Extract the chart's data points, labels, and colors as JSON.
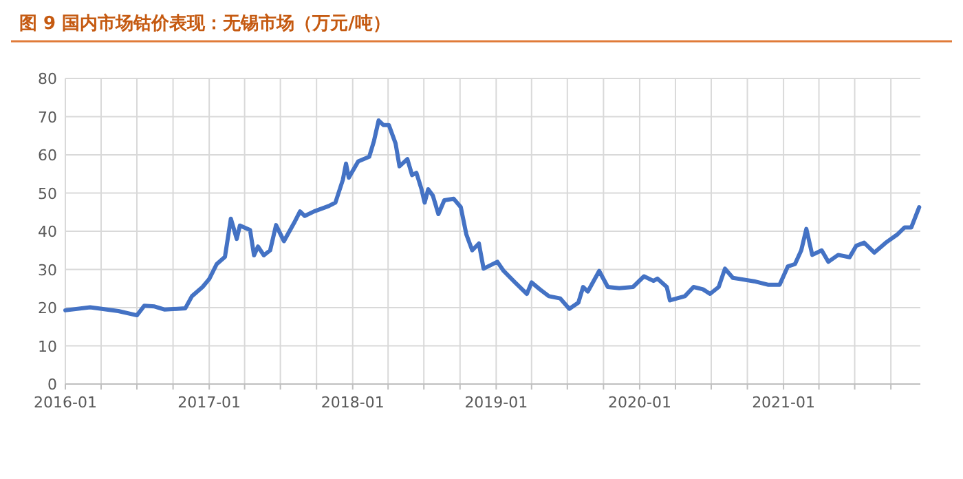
{
  "chart_data": {
    "type": "line",
    "title": "图 9  国内市场钴价表现：无锡市场（万元/吨）",
    "x": [
      "2016-01-01",
      "2016-03-04",
      "2016-05-15",
      "2016-07-01",
      "2016-07-20",
      "2016-08-15",
      "2016-09-10",
      "2016-11-01",
      "2016-11-18",
      "2016-12-15",
      "2017-01-01",
      "2017-01-20",
      "2017-02-10",
      "2017-02-25",
      "2017-03-12",
      "2017-03-20",
      "2017-04-15",
      "2017-04-25",
      "2017-05-05",
      "2017-05-20",
      "2017-06-05",
      "2017-06-20",
      "2017-07-10",
      "2017-08-05",
      "2017-08-20",
      "2017-09-01",
      "2017-09-25",
      "2017-11-01",
      "2017-11-18",
      "2017-12-07",
      "2017-12-15",
      "2017-12-22",
      "2018-01-15",
      "2018-02-12",
      "2018-02-24",
      "2018-03-08",
      "2018-03-20",
      "2018-04-03",
      "2018-04-20",
      "2018-04-30",
      "2018-05-20",
      "2018-06-01",
      "2018-06-12",
      "2018-06-25",
      "2018-07-03",
      "2018-07-12",
      "2018-07-24",
      "2018-08-07",
      "2018-08-22",
      "2018-09-15",
      "2018-10-03",
      "2018-10-17",
      "2018-11-01",
      "2018-11-18",
      "2018-11-30",
      "2019-01-04",
      "2019-01-20",
      "2019-02-18",
      "2019-03-20",
      "2019-04-01",
      "2019-04-22",
      "2019-05-15",
      "2019-06-13",
      "2019-07-06",
      "2019-07-29",
      "2019-08-10",
      "2019-08-22",
      "2019-09-20",
      "2019-10-12",
      "2019-11-10",
      "2019-12-15",
      "2020-01-12",
      "2020-02-05",
      "2020-02-15",
      "2020-03-10",
      "2020-03-18",
      "2020-04-25",
      "2020-05-17",
      "2020-06-10",
      "2020-06-28",
      "2020-07-20",
      "2020-08-05",
      "2020-08-25",
      "2020-09-12",
      "2020-10-18",
      "2020-11-22",
      "2020-12-22",
      "2021-01-12",
      "2021-01-30",
      "2021-02-15",
      "2021-02-28",
      "2021-03-15",
      "2021-04-08",
      "2021-04-25",
      "2021-05-20",
      "2021-06-18",
      "2021-07-05",
      "2021-07-25",
      "2021-08-20",
      "2021-09-18",
      "2021-10-18",
      "2021-11-05",
      "2021-11-22",
      "2021-12-12"
    ],
    "series": [
      {
        "color": "#4472c4",
        "values": [
          19.3,
          20.1,
          19.1,
          18.0,
          20.5,
          20.3,
          19.5,
          19.8,
          23,
          25.4,
          27.5,
          31.4,
          33.3,
          43.3,
          38,
          41.5,
          40.3,
          33.7,
          36,
          33.7,
          35,
          41.6,
          37.4,
          42.2,
          45.2,
          44,
          45.2,
          46.6,
          47.5,
          53.5,
          57.7,
          54,
          58.3,
          59.5,
          63.6,
          69,
          67.8,
          67.8,
          63,
          57,
          58.9,
          54.7,
          55.3,
          51,
          47.5,
          51,
          49.3,
          44.5,
          48.1,
          48.5,
          46.3,
          39.2,
          35,
          36.8,
          30.2,
          32,
          29.6,
          26.6,
          23.6,
          26.6,
          24.8,
          23,
          22.4,
          19.7,
          21.3,
          25.4,
          24.2,
          29.6,
          25.4,
          25.1,
          25.4,
          28.2,
          27,
          27.6,
          25.4,
          21.9,
          23,
          25.4,
          24.8,
          23.6,
          25.4,
          30.2,
          27.8,
          27.5,
          26.9,
          26,
          26,
          30.8,
          31.4,
          35,
          40.6,
          33.8,
          35,
          32,
          33.8,
          33.2,
          36.2,
          37,
          34.4,
          37,
          39.2,
          41,
          41,
          46.3
        ]
      }
    ],
    "xlim": [
      "2016-01-01",
      "2021-12-15"
    ],
    "xticks": [
      {
        "value": "2016-01-01",
        "label": "2016-01"
      },
      {
        "value": "2016-04-01",
        "label": null
      },
      {
        "value": "2016-07-01",
        "label": null
      },
      {
        "value": "2016-10-01",
        "label": null
      },
      {
        "value": "2017-01-01",
        "label": "2017-01"
      },
      {
        "value": "2017-04-01",
        "label": null
      },
      {
        "value": "2017-07-01",
        "label": null
      },
      {
        "value": "2017-10-01",
        "label": null
      },
      {
        "value": "2018-01-01",
        "label": "2018-01"
      },
      {
        "value": "2018-04-01",
        "label": null
      },
      {
        "value": "2018-07-01",
        "label": null
      },
      {
        "value": "2018-10-01",
        "label": null
      },
      {
        "value": "2019-01-01",
        "label": "2019-01"
      },
      {
        "value": "2019-04-01",
        "label": null
      },
      {
        "value": "2019-07-01",
        "label": null
      },
      {
        "value": "2019-10-01",
        "label": null
      },
      {
        "value": "2020-01-01",
        "label": "2020-01"
      },
      {
        "value": "2020-04-01",
        "label": null
      },
      {
        "value": "2020-07-01",
        "label": null
      },
      {
        "value": "2020-10-01",
        "label": null
      },
      {
        "value": "2021-01-01",
        "label": "2021-01"
      },
      {
        "value": "2021-04-01",
        "label": null
      },
      {
        "value": "2021-07-01",
        "label": null
      },
      {
        "value": "2021-10-01",
        "label": null
      }
    ],
    "ylim": [
      0,
      80
    ],
    "yticks": [
      0,
      10,
      20,
      30,
      40,
      50,
      60,
      70,
      80
    ],
    "grid": true,
    "line_style": "solid",
    "marker": "none"
  }
}
